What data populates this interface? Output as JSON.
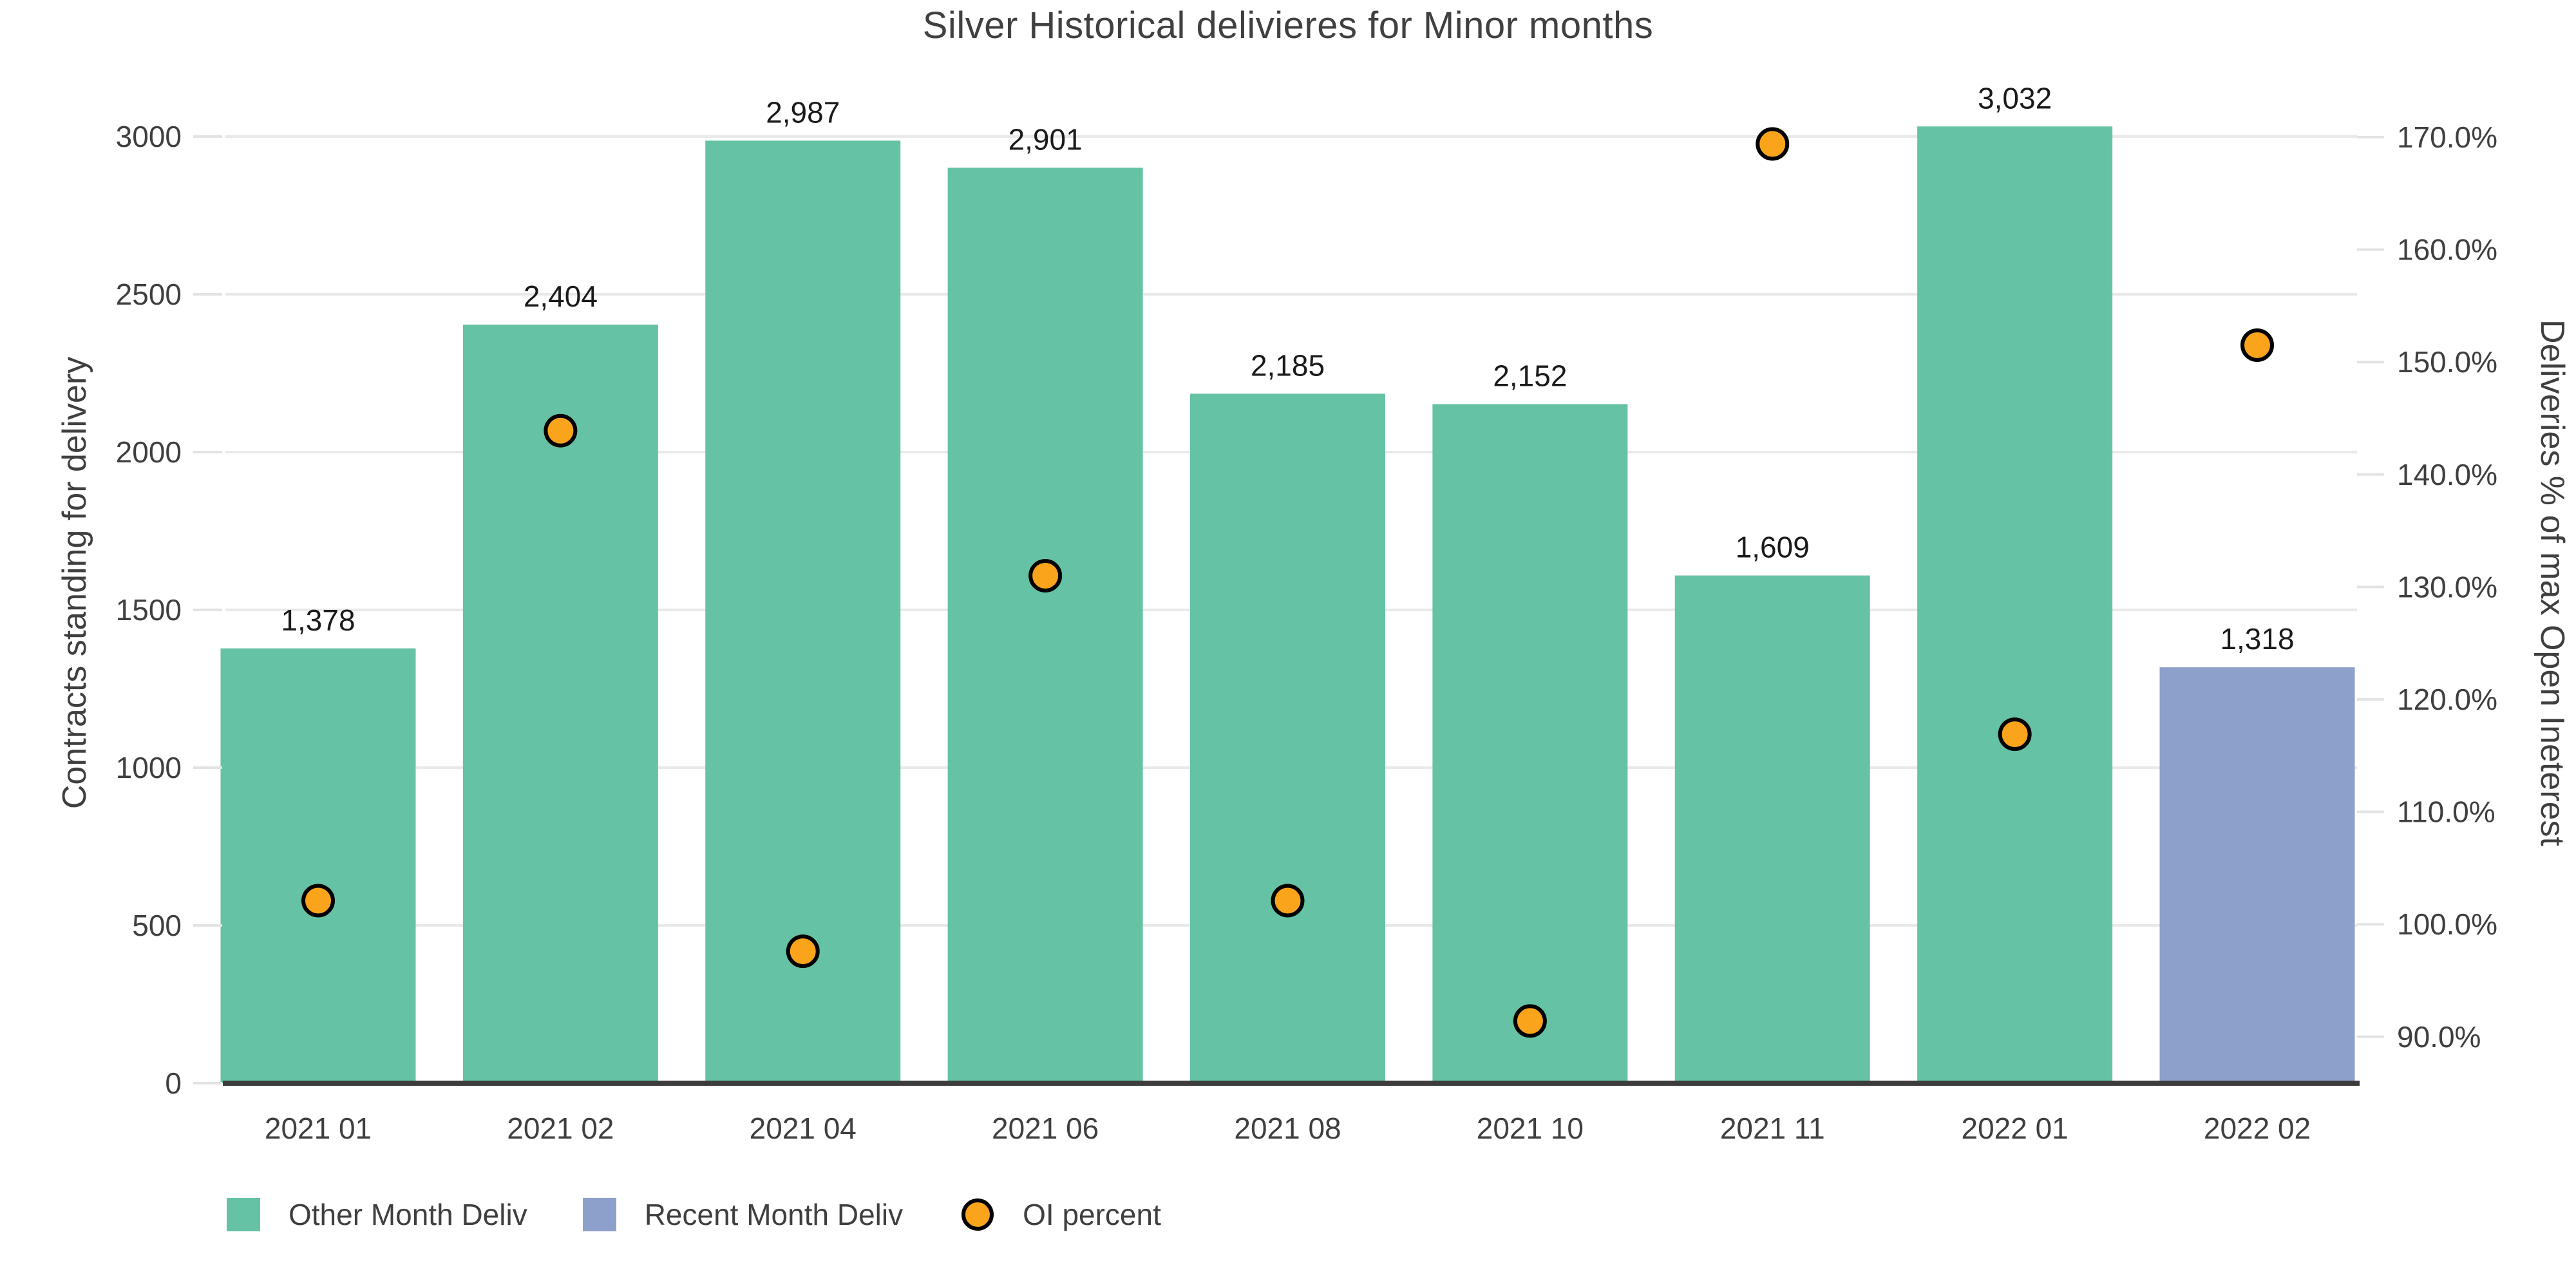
{
  "chart_data": {
    "type": "bar",
    "title": "Silver Historical delivieres for Minor months",
    "categories": [
      "2021 01",
      "2021 02",
      "2021 04",
      "2021 06",
      "2021 08",
      "2021 10",
      "2021 11",
      "2022 01",
      "2022 02"
    ],
    "series": [
      {
        "name": "Other Month Deliv",
        "type": "bar",
        "color": "#66c2a5",
        "values": [
          1378,
          2404,
          2987,
          2901,
          2185,
          2152,
          1609,
          3032,
          null
        ],
        "labels": [
          "1,378",
          "2,404",
          "2,987",
          "2,901",
          "2,185",
          "2,152",
          "1,609",
          "3,032",
          null
        ]
      },
      {
        "name": "Recent Month Deliv",
        "type": "bar",
        "color": "#8da0cb",
        "values": [
          null,
          null,
          null,
          null,
          null,
          null,
          null,
          null,
          1318
        ],
        "labels": [
          null,
          null,
          null,
          null,
          null,
          null,
          null,
          null,
          "1,318"
        ]
      },
      {
        "name": "OI percent",
        "type": "scatter",
        "yaxis": "right",
        "color": "#f9a41b",
        "stroke": "#000000",
        "values": [
          102.1,
          143.9,
          97.6,
          131.0,
          102.1,
          91.4,
          169.4,
          116.9,
          151.5
        ]
      }
    ],
    "y_left": {
      "label": "Contracts standing for delivery",
      "ticks": [
        0,
        500,
        1000,
        1500,
        2000,
        2500,
        3000
      ],
      "range": [
        0,
        3085
      ]
    },
    "y_right": {
      "label": "Deliveries % of max Open Ineterest",
      "tick_labels": [
        "90.0%",
        "100.0%",
        "110.0%",
        "120.0%",
        "130.0%",
        "140.0%",
        "150.0%",
        "160.0%",
        "170.0%"
      ],
      "tick_values": [
        90,
        100,
        110,
        120,
        130,
        140,
        150,
        160,
        170
      ],
      "range": [
        85.9,
        172.5
      ]
    },
    "grid": "horizontal",
    "legend_position": "bottom-left"
  },
  "colors": {
    "background": "#ffffff",
    "grid_line": "#e9e9e9",
    "tick_mark": "#e3e3e3",
    "axis_baseline": "#3c3c3c",
    "tick_text": "#3f3f3f",
    "axis_title_text": "#3f3f3f",
    "bar_value_text": "#1a1a1a",
    "title_text": "#404040"
  }
}
